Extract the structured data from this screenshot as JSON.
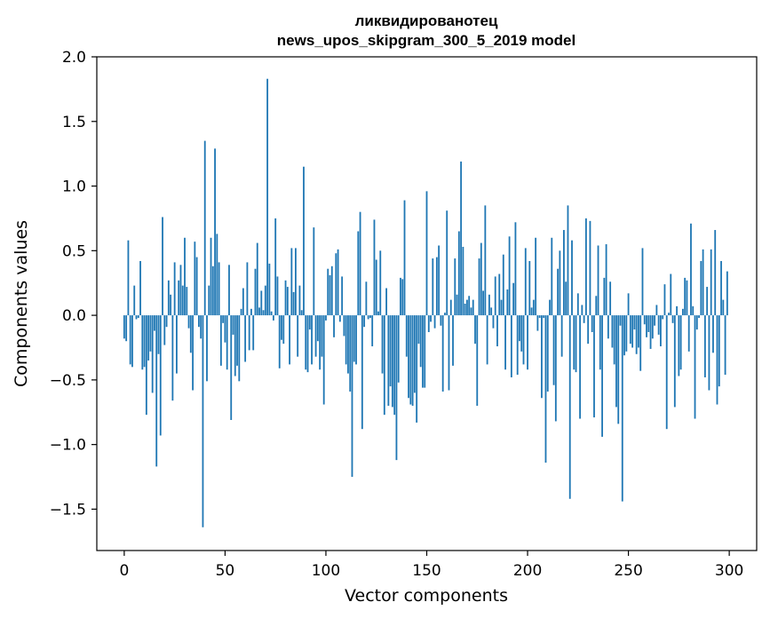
{
  "chart_data": {
    "type": "bar",
    "title": "ликвидированотец",
    "subtitle": "news_upos_skipgram_300_5_2019 model",
    "xlabel": "Vector components",
    "ylabel": "Components values",
    "xlim": [
      -13.6,
      313.6
    ],
    "ylim": [
      -1.82,
      2.0
    ],
    "xticks": [
      0,
      50,
      100,
      150,
      200,
      250,
      300
    ],
    "yticks": [
      -1.5,
      -1.0,
      -0.5,
      0.0,
      0.5,
      1.0,
      1.5,
      2.0
    ],
    "ytick_labels": [
      "−1.5",
      "−1.0",
      "−0.5",
      "0.0",
      "0.5",
      "1.0",
      "1.5",
      "2.0"
    ],
    "bar_color": "#1f77b4",
    "grid": false,
    "values": [
      -0.18,
      -0.2,
      0.58,
      -0.38,
      -0.4,
      0.23,
      -0.03,
      -0.02,
      0.42,
      -0.42,
      -0.4,
      -0.77,
      -0.35,
      -0.28,
      -0.6,
      -0.12,
      -1.17,
      -0.3,
      -0.93,
      0.76,
      -0.23,
      -0.09,
      0.27,
      0.16,
      -0.66,
      0.41,
      -0.45,
      0.27,
      0.39,
      0.23,
      0.6,
      0.22,
      -0.1,
      -0.29,
      -0.58,
      0.57,
      0.45,
      -0.09,
      -0.18,
      -1.64,
      1.35,
      -0.51,
      0.23,
      0.6,
      0.38,
      1.29,
      0.63,
      0.41,
      -0.39,
      -0.06,
      -0.21,
      -0.42,
      0.39,
      -0.81,
      -0.15,
      -0.47,
      -0.39,
      -0.51,
      0.05,
      0.21,
      -0.36,
      0.41,
      -0.27,
      0.05,
      -0.27,
      0.36,
      0.56,
      0.06,
      0.19,
      0.04,
      0.23,
      1.83,
      0.4,
      0.03,
      -0.04,
      0.75,
      0.3,
      -0.41,
      -0.19,
      -0.22,
      0.27,
      0.22,
      -0.38,
      0.52,
      0.18,
      0.52,
      -0.32,
      0.23,
      0.04,
      1.15,
      -0.42,
      -0.44,
      -0.11,
      -0.38,
      0.68,
      -0.32,
      -0.2,
      -0.42,
      -0.32,
      -0.69,
      -0.04,
      0.36,
      0.31,
      0.38,
      -0.17,
      0.48,
      0.51,
      -0.05,
      0.3,
      -0.16,
      -0.38,
      -0.45,
      -0.59,
      -1.25,
      -0.36,
      -0.38,
      0.65,
      0.8,
      -0.88,
      -0.09,
      0.26,
      -0.03,
      -0.02,
      -0.24,
      0.74,
      0.43,
      0.03,
      0.5,
      -0.45,
      -0.77,
      0.21,
      -0.7,
      -0.55,
      -0.71,
      -0.77,
      -1.12,
      -0.52,
      0.29,
      0.28,
      0.89,
      -0.32,
      -0.64,
      -0.69,
      -0.7,
      -0.6,
      -0.83,
      -0.22,
      -0.4,
      -0.56,
      -0.56,
      0.96,
      -0.13,
      -0.05,
      0.44,
      -0.1,
      0.45,
      0.54,
      -0.08,
      -0.59,
      0.02,
      0.81,
      -0.58,
      0.12,
      -0.39,
      0.44,
      0.16,
      0.65,
      1.19,
      0.53,
      0.09,
      0.12,
      0.15,
      0.06,
      0.12,
      -0.22,
      -0.7,
      0.44,
      0.56,
      0.19,
      0.85,
      -0.38,
      0.16,
      0.06,
      -0.1,
      0.3,
      -0.24,
      0.32,
      0.12,
      0.47,
      -0.42,
      0.2,
      0.61,
      -0.48,
      0.25,
      0.72,
      -0.46,
      -0.2,
      -0.28,
      -0.38,
      0.52,
      -0.42,
      0.42,
      0.06,
      0.12,
      0.6,
      -0.12,
      -0.02,
      -0.64,
      -0.02,
      -1.14,
      -0.59,
      0.12,
      0.6,
      -0.54,
      -0.82,
      0.36,
      0.5,
      -0.32,
      0.66,
      0.26,
      0.85,
      -1.42,
      0.58,
      -0.42,
      -0.44,
      0.17,
      -0.8,
      0.08,
      -0.06,
      0.75,
      -0.22,
      0.73,
      -0.13,
      -0.79,
      0.15,
      0.54,
      -0.42,
      -0.94,
      0.29,
      0.55,
      -0.18,
      0.26,
      -0.25,
      -0.38,
      -0.71,
      -0.84,
      -0.08,
      -1.44,
      -0.31,
      -0.28,
      0.17,
      -0.22,
      -0.25,
      -0.11,
      -0.3,
      -0.25,
      -0.43,
      0.52,
      -0.07,
      -0.17,
      -0.13,
      -0.26,
      -0.18,
      -0.08,
      0.08,
      -0.15,
      -0.24,
      -0.03,
      0.24,
      -0.88,
      0.02,
      0.32,
      -0.06,
      -0.71,
      0.07,
      -0.47,
      -0.42,
      0.05,
      0.29,
      0.27,
      -0.28,
      0.71,
      0.07,
      -0.8,
      -0.11,
      -0.02,
      0.42,
      0.51,
      -0.48,
      0.22,
      -0.58,
      0.51,
      -0.29,
      0.66,
      -0.69,
      -0.55,
      0.42,
      0.12,
      -0.46,
      0.34
    ]
  }
}
